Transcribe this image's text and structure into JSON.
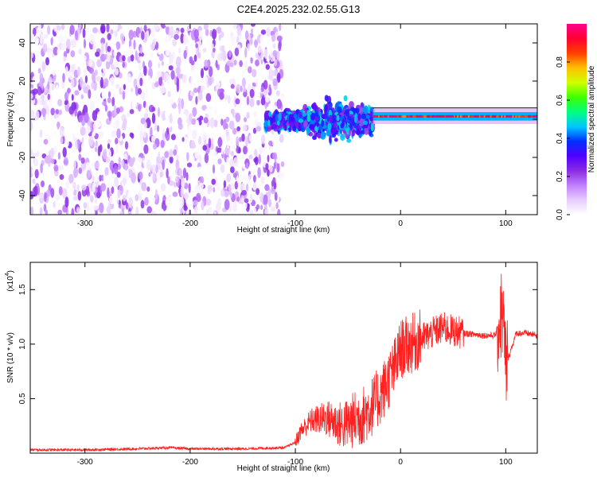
{
  "title": "C2E4.2025.232.02.55.G13",
  "chart_data": [
    {
      "type": "heatmap",
      "title": "C2E4.2025.232.02.55.G13",
      "xlabel": "Height of straight line (km)",
      "ylabel": "Frequency (Hz)",
      "xlim": [
        -352,
        130
      ],
      "ylim": [
        -50,
        50
      ],
      "xticks": [
        -300,
        -200,
        -100,
        0,
        100
      ],
      "yticks": [
        -40,
        -20,
        0,
        20,
        40
      ],
      "colorbar": {
        "label": "Normalized spectral amplitude",
        "range": [
          0,
          1
        ],
        "ticks": [
          0.0,
          0.2,
          0.4,
          0.6,
          0.8
        ],
        "colors": [
          "#ffffff",
          "#e6ccff",
          "#c080ff",
          "#8a2be2",
          "#5000ff",
          "#0030ff",
          "#00c8ff",
          "#00ff80",
          "#40ff00",
          "#d0ff00",
          "#ffc000",
          "#ff4000",
          "#ff0030",
          "#ff0090"
        ]
      },
      "regions": [
        {
          "name": "broadband noise",
          "x_range": [
            -352,
            -112
          ],
          "freq_range": [
            -50,
            50
          ],
          "amplitude_range": [
            0.0,
            0.25
          ]
        },
        {
          "name": "scintillating band",
          "x_range": [
            -128,
            -26
          ],
          "freq_range": [
            -15,
            12
          ],
          "amplitude_range": [
            0.2,
            0.5
          ]
        },
        {
          "name": "carrier line",
          "x_range": [
            -26,
            130
          ],
          "freq_center": 1.5,
          "freq_halfwidth": 2,
          "amplitude_range": [
            0.8,
            1.0
          ]
        }
      ]
    },
    {
      "type": "line",
      "title": "",
      "xlabel": "Height of straight line (km)",
      "ylabel": "SNR (10 * v/v)",
      "scale_label": "(x10",
      "scale_exponent": "4",
      "xlim": [
        -352,
        130
      ],
      "ylim": [
        0,
        1.75
      ],
      "xticks": [
        -300,
        -200,
        -100,
        0,
        100
      ],
      "yticks": [
        0.5,
        1.0,
        1.5
      ],
      "series": [
        {
          "name": "SNR",
          "color": "#ff2020",
          "x": [
            -352,
            -300,
            -250,
            -220,
            -200,
            -150,
            -110,
            -100,
            -95,
            -85,
            -70,
            -55,
            -45,
            -35,
            -25,
            -15,
            -5,
            0,
            10,
            20,
            30,
            40,
            50,
            60,
            70,
            80,
            90,
            97,
            100,
            110,
            120,
            130
          ],
          "y": [
            0.03,
            0.03,
            0.04,
            0.05,
            0.04,
            0.04,
            0.05,
            0.1,
            0.2,
            0.3,
            0.32,
            0.25,
            0.3,
            0.35,
            0.45,
            0.6,
            0.8,
            0.95,
            1.0,
            1.05,
            1.1,
            1.15,
            1.12,
            1.1,
            1.09,
            1.08,
            1.08,
            1.3,
            0.8,
            1.1,
            1.1,
            1.08
          ]
        }
      ]
    }
  ]
}
